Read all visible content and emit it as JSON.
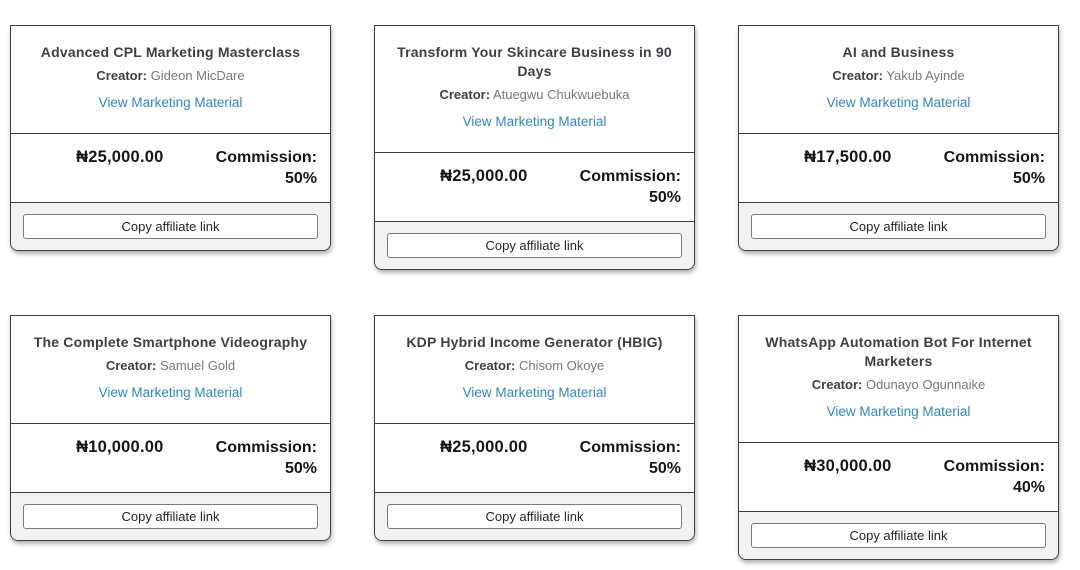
{
  "colors": {
    "link_blue": "#3187c2",
    "title_dark": "#3d4045",
    "muted_gray": "#75787f",
    "price_black": "#161616",
    "card_border": "#3f3f3f",
    "footer_bg": "#f2f2f2",
    "button_border": "#7b7b7b"
  },
  "labels": {
    "creator": "Creator:",
    "view_marketing": "View Marketing Material",
    "commission": "Commission:",
    "copy_link": "Copy affiliate link"
  },
  "products": [
    {
      "title": "Advanced CPL Marketing Masterclass",
      "creator": "Gideon MicDare",
      "price": "₦25,000.00",
      "commission_pct": "50%"
    },
    {
      "title": "Transform Your Skincare Business in 90 Days",
      "creator": "Atuegwu Chukwuebuka",
      "price": "₦25,000.00",
      "commission_pct": "50%"
    },
    {
      "title": "AI and Business",
      "creator": "Yakub Ayinde",
      "price": "₦17,500.00",
      "commission_pct": "50%"
    },
    {
      "title": "The Complete Smartphone Videography",
      "creator": "Samuel Gold",
      "price": "₦10,000.00",
      "commission_pct": "50%"
    },
    {
      "title": "KDP Hybrid Income Generator (HBIG)",
      "creator": "Chisom Okoye",
      "price": "₦25,000.00",
      "commission_pct": "50%"
    },
    {
      "title": "WhatsApp Automation Bot For Internet Marketers",
      "creator": "Odunayo Ogunnaike",
      "price": "₦30,000.00",
      "commission_pct": "40%"
    }
  ]
}
